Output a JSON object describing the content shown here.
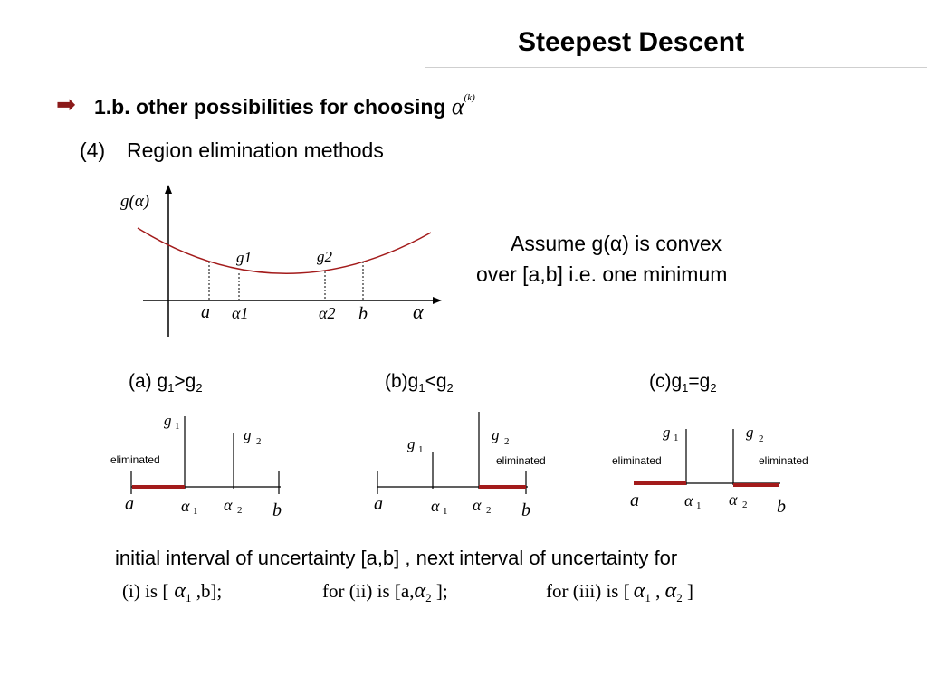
{
  "slide": {
    "title": "Steepest Descent",
    "bullet_icon": "arrow-right-icon",
    "heading": "1.b. other possibilities for choosing",
    "heading_symbol": "α",
    "heading_superscript": "(k)",
    "sub_number": "(4)",
    "sub_text": "Region elimination methods",
    "assume_line1": "Assume g(α) is convex",
    "assume_line2": "over [a,b] i.e. one minimum",
    "accent_color": "#8b1a1a"
  },
  "main_graph": {
    "y_label": "g(α)",
    "x_label": "α",
    "points": [
      "a",
      "α1",
      "α2",
      "b"
    ],
    "values": [
      "g1",
      "g2"
    ]
  },
  "cases": [
    {
      "label": "(a) g",
      "s1": "1",
      "op": ">g",
      "s2": "2",
      "eliminated": [
        "eliminated"
      ]
    },
    {
      "label": "(b)g",
      "s1": "1",
      "op": "<g",
      "s2": "2",
      "eliminated": [
        "eliminated"
      ]
    },
    {
      "label": "(c)g",
      "s1": "1",
      "op": "=g",
      "s2": "2",
      "eliminated": [
        "eliminated",
        "eliminated"
      ]
    }
  ],
  "conclusion": {
    "line1": "initial interval of uncertainty [a,b] , next interval of uncertainty for",
    "i_prefix": "(i) is [",
    "i_suffix": ",b];",
    "ii_prefix": "for (ii) is [a,",
    "ii_suffix": "];",
    "iii_prefix": "for (iii) is [",
    "iii_mid": ",",
    "iii_suffix": "]"
  }
}
